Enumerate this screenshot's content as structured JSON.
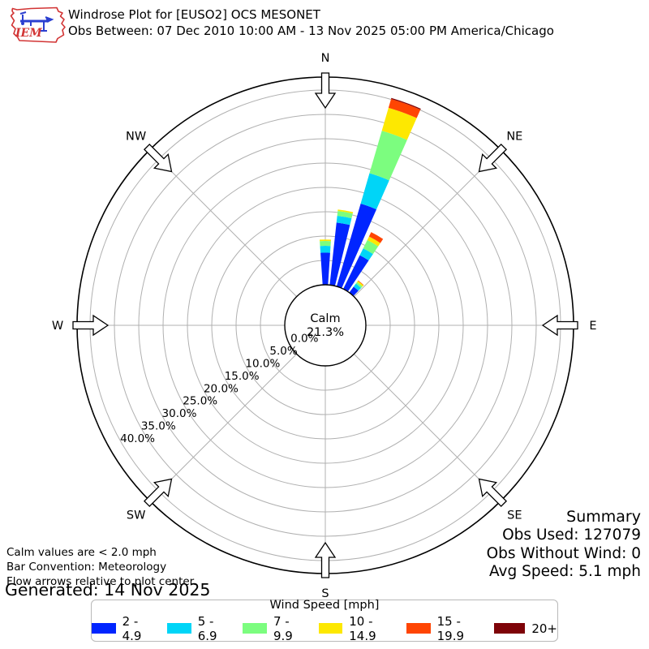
{
  "header": {
    "logo_text": "IEM",
    "title": "Windrose Plot for [EUSO2] OCS MESONET",
    "subtitle": "Obs Between: 07 Dec 2010 10:00 AM - 13 Nov 2025 05:00 PM America/Chicago"
  },
  "summary": {
    "title": "Summary",
    "lines": [
      "Obs Used: 127079",
      "Obs Without Wind: 0",
      "Avg Speed: 5.1 mph"
    ]
  },
  "notes": {
    "calm": "Calm values are < 2.0 mph",
    "convention": "Bar Convention: Meteorology",
    "flow": "Flow arrows relative to plot center.",
    "generated": "Generated: 14 Nov 2025"
  },
  "chart_data": {
    "type": "windrose",
    "legend_title": "Wind Speed [mph]",
    "calm_label": "Calm",
    "calm_percent_label": "21.3%",
    "calm_percent": 21.3,
    "axis_max_percent": 40,
    "ring_step_percent": 5,
    "radial_tick_labels": [
      "0.0%",
      "5.0%",
      "10.0%",
      "15.0%",
      "20.0%",
      "25.0%",
      "30.0%",
      "35.0%",
      "40.0%"
    ],
    "compass_labels": [
      "N",
      "NE",
      "E",
      "SE",
      "S",
      "SW",
      "W",
      "NW"
    ],
    "grid_color": "#b0b0b0",
    "speed_bins": [
      {
        "label": "2 - 4.9",
        "color": "#0125ff"
      },
      {
        "label": "5 - 6.9",
        "color": "#00d5f7"
      },
      {
        "label": "7 - 9.9",
        "color": "#7cfd7f"
      },
      {
        "label": "10 - 14.9",
        "color": "#fde801"
      },
      {
        "label": "15 - 19.9",
        "color": "#ff4503"
      },
      {
        "label": "20+",
        "color": "#7e0308"
      }
    ],
    "bars": [
      {
        "direction_deg": 0,
        "segments_percent": [
          6.6,
          1.4,
          1.0,
          0.3,
          0,
          0
        ]
      },
      {
        "direction_deg": 10,
        "segments_percent": [
          12.9,
          1.4,
          1.0,
          0.3,
          0,
          0
        ]
      },
      {
        "direction_deg": 20,
        "segments_percent": [
          17.7,
          6.5,
          9.1,
          4.9,
          1.9,
          0.2
        ]
      },
      {
        "direction_deg": 30,
        "segments_percent": [
          7.7,
          1.6,
          1.9,
          0.8,
          1.0,
          0
        ]
      },
      {
        "direction_deg": 40,
        "segments_percent": [
          1.5,
          0.8,
          0.4,
          0.3,
          0.1,
          0
        ]
      }
    ]
  }
}
